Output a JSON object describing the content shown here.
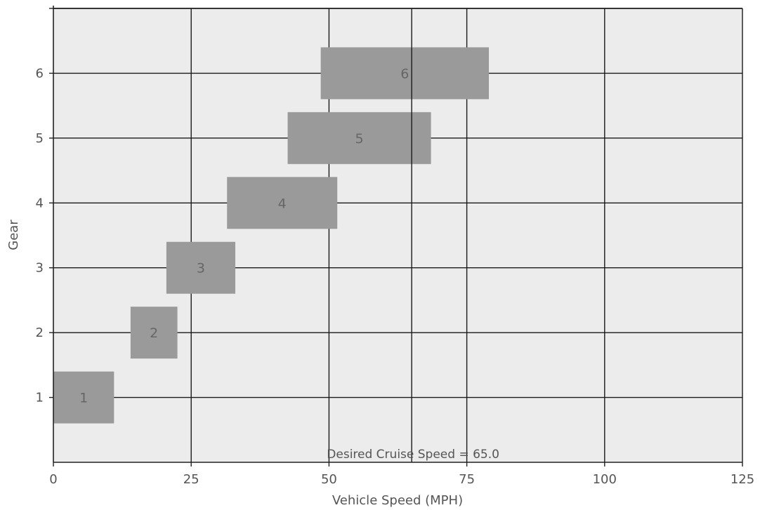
{
  "chart_data": {
    "type": "bar",
    "orientation": "horizontal-range",
    "title": "",
    "xlabel": "Vehicle Speed (MPH)",
    "ylabel": "Gear",
    "xlim": [
      0,
      125
    ],
    "ylim": [
      0,
      7
    ],
    "xticks": [
      0,
      25,
      50,
      75,
      100,
      125
    ],
    "yticks": [
      1,
      2,
      3,
      4,
      5,
      6
    ],
    "grid": true,
    "bars": [
      {
        "label": "1",
        "gear": 1,
        "start": 0,
        "end": 11
      },
      {
        "label": "2",
        "gear": 2,
        "start": 14,
        "end": 22.5
      },
      {
        "label": "3",
        "gear": 3,
        "start": 20.5,
        "end": 33
      },
      {
        "label": "4",
        "gear": 4,
        "start": 31.5,
        "end": 51.5
      },
      {
        "label": "5",
        "gear": 5,
        "start": 42.5,
        "end": 68.5
      },
      {
        "label": "6",
        "gear": 6,
        "start": 48.5,
        "end": 79
      }
    ],
    "reference_line": {
      "x": 65,
      "label": "Desired Cruise Speed = 65.0"
    },
    "colors": {
      "bar": "#9a9a9a",
      "plot_background": "#ececec",
      "grid": "#1a1a1a",
      "reference_line": "#1a1a1a"
    }
  }
}
